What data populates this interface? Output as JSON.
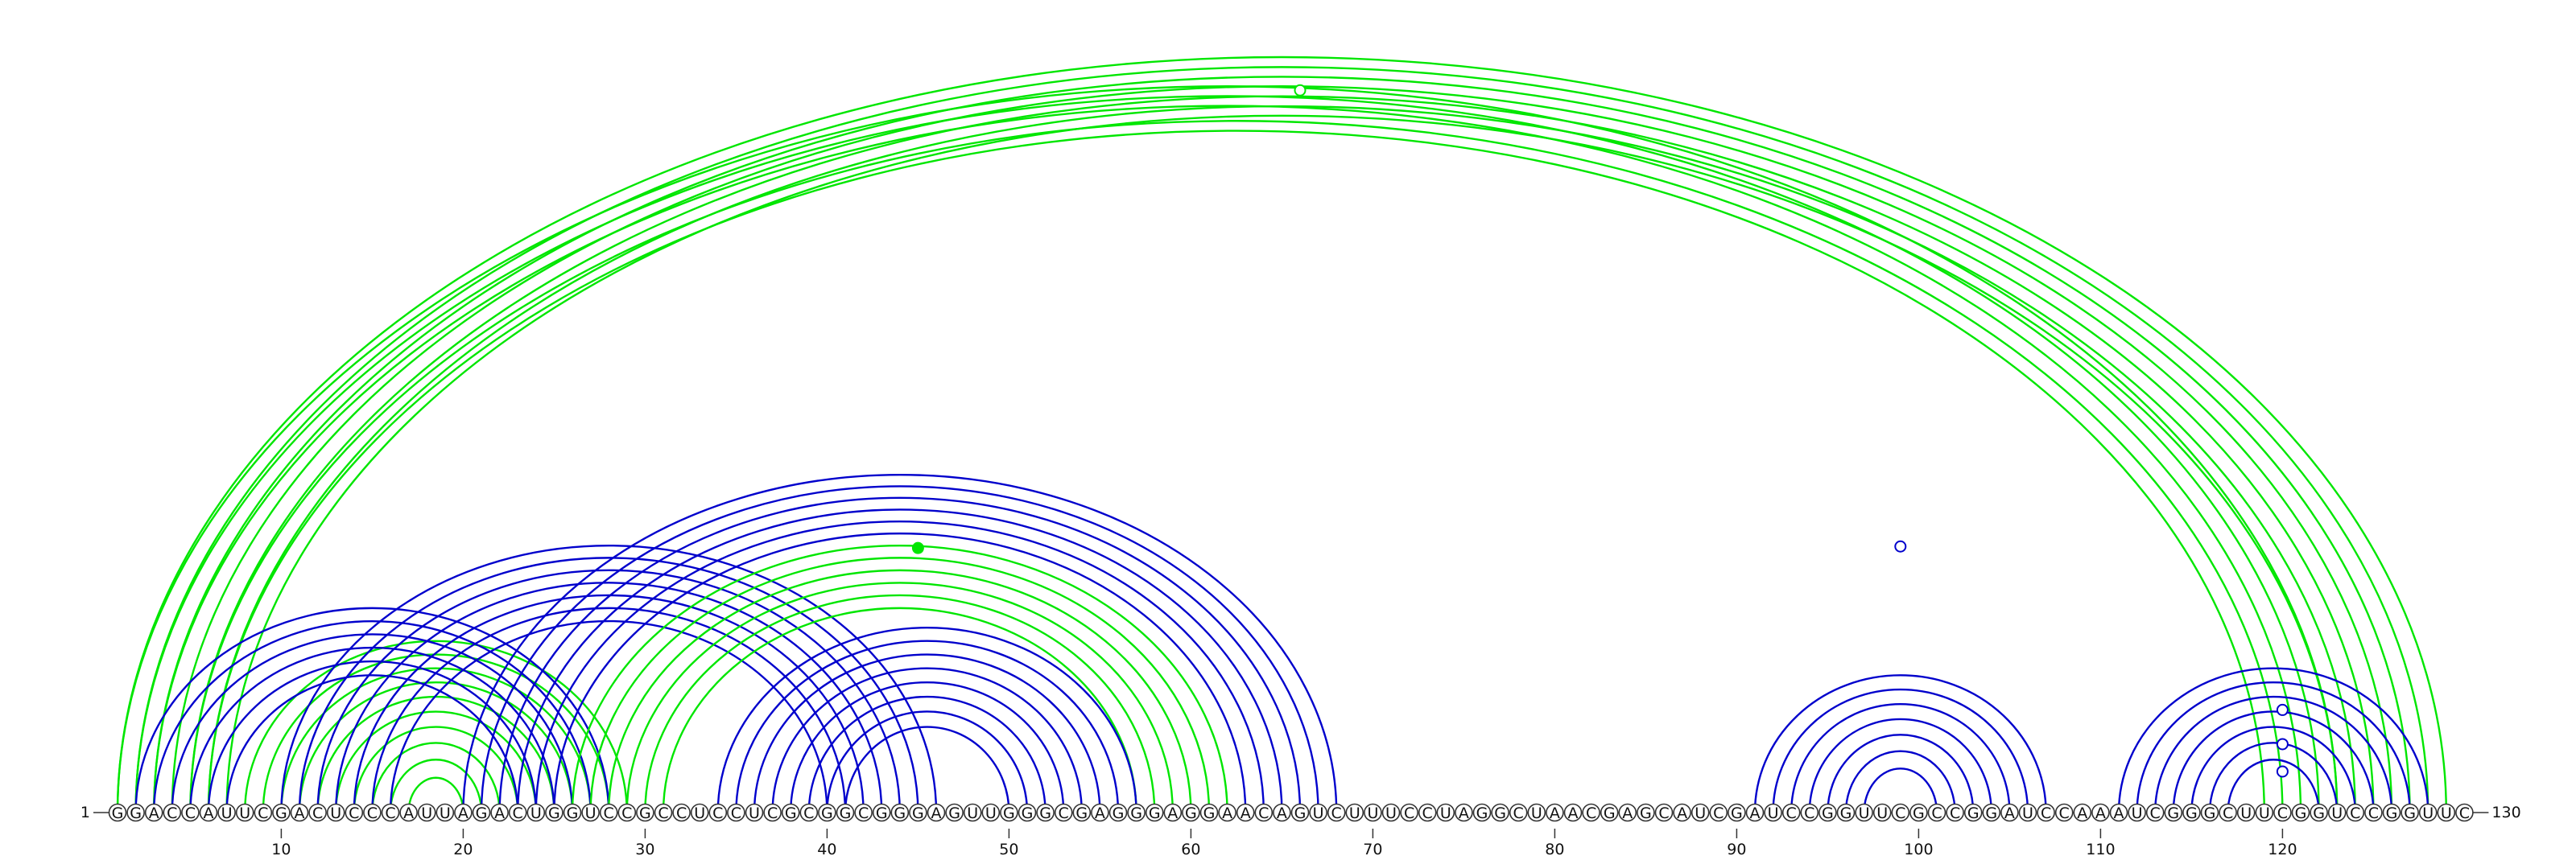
{
  "sequence": "GGACCAUUCGACUCCCAUUAGACUGGUCCGCCUCCUCGCGGCGGGAGUUGGGCGAGGGAGGAACAGUCUUUCCUAGGCUAACGAGCAUCGAUCCGGUUCGCCGGAUCCAAAUCGGGCUUCGGUCCGGUUC",
  "start_label": "1",
  "end_label": "130",
  "ticks": [
    10,
    20,
    30,
    40,
    50,
    60,
    70,
    80,
    90,
    100,
    110,
    120
  ],
  "colors": {
    "green": "#00e600",
    "blue": "#0000cc"
  },
  "chart_data": {
    "type": "arc-diagram",
    "title": "",
    "xlabel": "",
    "ylabel": "",
    "length": 130,
    "groups": [
      {
        "color": "green",
        "pairs": [
          [
            1,
            129
          ],
          [
            2,
            128
          ],
          [
            3,
            127
          ],
          [
            4,
            126
          ],
          [
            5,
            125
          ],
          [
            6,
            124
          ],
          [
            7,
            123
          ]
        ]
      },
      {
        "color": "green",
        "pairs": [
          [
            1,
            123
          ],
          [
            2,
            122
          ],
          [
            3,
            121
          ],
          [
            5,
            120
          ],
          [
            6,
            119
          ]
        ]
      },
      {
        "color": "green",
        "pairs": [
          [
            8,
            29
          ],
          [
            9,
            28
          ],
          [
            10,
            27
          ],
          [
            11,
            26
          ],
          [
            12,
            25
          ],
          [
            13,
            24
          ],
          [
            14,
            23
          ],
          [
            15,
            22
          ],
          [
            16,
            21
          ],
          [
            17,
            20
          ]
        ]
      },
      {
        "color": "blue",
        "pairs": [
          [
            2,
            28
          ],
          [
            3,
            27
          ],
          [
            4,
            26
          ],
          [
            5,
            25
          ],
          [
            6,
            24
          ],
          [
            7,
            23
          ]
        ]
      },
      {
        "color": "blue",
        "pairs": [
          [
            10,
            46
          ],
          [
            11,
            45
          ],
          [
            12,
            44
          ],
          [
            13,
            43
          ],
          [
            14,
            42
          ],
          [
            15,
            41
          ],
          [
            16,
            40
          ]
        ]
      },
      {
        "color": "blue",
        "pairs": [
          [
            20,
            68
          ],
          [
            21,
            67
          ],
          [
            22,
            66
          ],
          [
            23,
            65
          ],
          [
            24,
            64
          ],
          [
            25,
            63
          ]
        ]
      },
      {
        "color": "green",
        "pairs": [
          [
            26,
            62
          ],
          [
            27,
            61
          ],
          [
            28,
            60
          ],
          [
            29,
            59
          ],
          [
            30,
            58
          ],
          [
            31,
            57
          ]
        ]
      },
      {
        "color": "blue",
        "pairs": [
          [
            34,
            57
          ],
          [
            35,
            56
          ],
          [
            36,
            55
          ],
          [
            37,
            54
          ],
          [
            38,
            53
          ],
          [
            39,
            52
          ],
          [
            40,
            51
          ],
          [
            41,
            50
          ]
        ]
      },
      {
        "color": "blue",
        "pairs": [
          [
            91,
            107
          ],
          [
            92,
            106
          ],
          [
            93,
            105
          ],
          [
            94,
            104
          ],
          [
            95,
            103
          ],
          [
            96,
            102
          ],
          [
            97,
            101
          ]
        ]
      },
      {
        "color": "blue",
        "pairs": [
          [
            111,
            128
          ],
          [
            112,
            127
          ],
          [
            113,
            126
          ],
          [
            114,
            125
          ],
          [
            115,
            124
          ],
          [
            116,
            123
          ],
          [
            117,
            122
          ]
        ]
      }
    ],
    "markers": [
      {
        "base": 66,
        "color": "green",
        "filled": false,
        "level": 0.95
      },
      {
        "base": 45,
        "color": "green",
        "filled": true,
        "level": 0.87
      },
      {
        "base": 99,
        "color": "blue",
        "filled": false,
        "level": 0.35
      },
      {
        "base": 120,
        "color": "blue",
        "filled": false,
        "level": 0.75
      },
      {
        "base": 120,
        "color": "blue",
        "filled": false,
        "level": 0.5
      },
      {
        "base": 120,
        "color": "blue",
        "filled": false,
        "level": 0.3
      }
    ]
  }
}
